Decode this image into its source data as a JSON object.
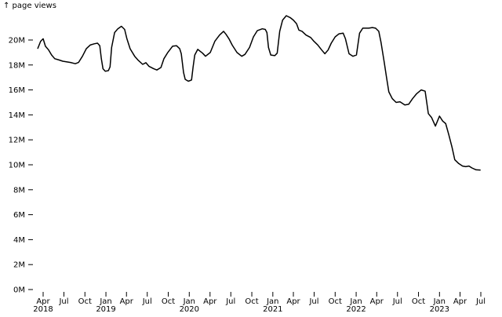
{
  "chart_data": {
    "type": "line",
    "ylabel": "↑ page views",
    "xlabel": "",
    "ylim": [
      0,
      22000000
    ],
    "xlim": [
      "2018-03-08",
      "2023-07-01"
    ],
    "grid": false,
    "stroke_color": "#000000",
    "y_ticks": [
      {
        "value": 0,
        "label": "0M"
      },
      {
        "value": 2000000,
        "label": "2M"
      },
      {
        "value": 4000000,
        "label": "4M"
      },
      {
        "value": 6000000,
        "label": "6M"
      },
      {
        "value": 8000000,
        "label": "8M"
      },
      {
        "value": 10000000,
        "label": "10M"
      },
      {
        "value": 12000000,
        "label": "12M"
      },
      {
        "value": 14000000,
        "label": "14M"
      },
      {
        "value": 16000000,
        "label": "16M"
      },
      {
        "value": 18000000,
        "label": "18M"
      },
      {
        "value": 20000000,
        "label": "20M"
      }
    ],
    "x_ticks": [
      {
        "date": "2018-04-01",
        "label": "Apr",
        "year": "2018"
      },
      {
        "date": "2018-07-01",
        "label": "Jul",
        "year": ""
      },
      {
        "date": "2018-10-01",
        "label": "Oct",
        "year": ""
      },
      {
        "date": "2019-01-01",
        "label": "Jan",
        "year": "2019"
      },
      {
        "date": "2019-04-01",
        "label": "Apr",
        "year": ""
      },
      {
        "date": "2019-07-01",
        "label": "Jul",
        "year": ""
      },
      {
        "date": "2019-10-01",
        "label": "Oct",
        "year": ""
      },
      {
        "date": "2020-01-01",
        "label": "Jan",
        "year": "2020"
      },
      {
        "date": "2020-04-01",
        "label": "Apr",
        "year": ""
      },
      {
        "date": "2020-07-01",
        "label": "Jul",
        "year": ""
      },
      {
        "date": "2020-10-01",
        "label": "Oct",
        "year": ""
      },
      {
        "date": "2021-01-01",
        "label": "Jan",
        "year": "2021"
      },
      {
        "date": "2021-04-01",
        "label": "Apr",
        "year": ""
      },
      {
        "date": "2021-07-01",
        "label": "Jul",
        "year": ""
      },
      {
        "date": "2021-10-01",
        "label": "Oct",
        "year": ""
      },
      {
        "date": "2022-01-01",
        "label": "Jan",
        "year": "2022"
      },
      {
        "date": "2022-04-01",
        "label": "Apr",
        "year": ""
      },
      {
        "date": "2022-07-01",
        "label": "Jul",
        "year": ""
      },
      {
        "date": "2022-10-01",
        "label": "Oct",
        "year": ""
      },
      {
        "date": "2023-01-01",
        "label": "Jan",
        "year": "2023"
      },
      {
        "date": "2023-04-01",
        "label": "Apr",
        "year": ""
      },
      {
        "date": "2023-07-01",
        "label": "Jul",
        "year": ""
      }
    ],
    "series": [
      {
        "points": [
          [
            "2018-03-08",
            19300000
          ],
          [
            "2018-03-21",
            19900000
          ],
          [
            "2018-04-01",
            20100000
          ],
          [
            "2018-04-11",
            19500000
          ],
          [
            "2018-04-25",
            19200000
          ],
          [
            "2018-05-08",
            18800000
          ],
          [
            "2018-05-22",
            18500000
          ],
          [
            "2018-06-09",
            18400000
          ],
          [
            "2018-06-26",
            18300000
          ],
          [
            "2018-07-30",
            18200000
          ],
          [
            "2018-08-20",
            18100000
          ],
          [
            "2018-09-03",
            18200000
          ],
          [
            "2018-09-20",
            18700000
          ],
          [
            "2018-10-07",
            19300000
          ],
          [
            "2018-10-24",
            19600000
          ],
          [
            "2018-11-11",
            19700000
          ],
          [
            "2018-11-25",
            19750000
          ],
          [
            "2018-12-05",
            19550000
          ],
          [
            "2018-12-12",
            18500000
          ],
          [
            "2018-12-19",
            17700000
          ],
          [
            "2018-12-29",
            17500000
          ],
          [
            "2019-01-12",
            17550000
          ],
          [
            "2019-01-19",
            17850000
          ],
          [
            "2019-01-26",
            19400000
          ],
          [
            "2019-02-08",
            20600000
          ],
          [
            "2019-02-22",
            20900000
          ],
          [
            "2019-03-10",
            21100000
          ],
          [
            "2019-03-24",
            20850000
          ],
          [
            "2019-04-03",
            20100000
          ],
          [
            "2019-04-17",
            19300000
          ],
          [
            "2019-05-07",
            18700000
          ],
          [
            "2019-05-21",
            18400000
          ],
          [
            "2019-06-11",
            18050000
          ],
          [
            "2019-06-25",
            18180000
          ],
          [
            "2019-07-08",
            17900000
          ],
          [
            "2019-07-29",
            17700000
          ],
          [
            "2019-08-12",
            17600000
          ],
          [
            "2019-08-30",
            17800000
          ],
          [
            "2019-09-12",
            18500000
          ],
          [
            "2019-09-29",
            19000000
          ],
          [
            "2019-10-20",
            19500000
          ],
          [
            "2019-11-06",
            19550000
          ],
          [
            "2019-11-20",
            19300000
          ],
          [
            "2019-11-27",
            18900000
          ],
          [
            "2019-12-07",
            17400000
          ],
          [
            "2019-12-14",
            16850000
          ],
          [
            "2019-12-28",
            16700000
          ],
          [
            "2020-01-11",
            16800000
          ],
          [
            "2020-01-18",
            17850000
          ],
          [
            "2020-01-25",
            18800000
          ],
          [
            "2020-02-07",
            19250000
          ],
          [
            "2020-02-28",
            18950000
          ],
          [
            "2020-03-12",
            18700000
          ],
          [
            "2020-04-02",
            19000000
          ],
          [
            "2020-04-22",
            19900000
          ],
          [
            "2020-05-13",
            20400000
          ],
          [
            "2020-05-30",
            20700000
          ],
          [
            "2020-06-10",
            20450000
          ],
          [
            "2020-06-23",
            20100000
          ],
          [
            "2020-07-07",
            19600000
          ],
          [
            "2020-07-28",
            19000000
          ],
          [
            "2020-08-18",
            18700000
          ],
          [
            "2020-09-01",
            18850000
          ],
          [
            "2020-09-21",
            19400000
          ],
          [
            "2020-10-08",
            20250000
          ],
          [
            "2020-10-25",
            20750000
          ],
          [
            "2020-11-16",
            20900000
          ],
          [
            "2020-11-29",
            20850000
          ],
          [
            "2020-12-06",
            20600000
          ],
          [
            "2020-12-13",
            19400000
          ],
          [
            "2020-12-23",
            18800000
          ],
          [
            "2021-01-10",
            18750000
          ],
          [
            "2021-01-20",
            18950000
          ],
          [
            "2021-01-31",
            20700000
          ],
          [
            "2021-02-13",
            21600000
          ],
          [
            "2021-03-01",
            21950000
          ],
          [
            "2021-03-18",
            21800000
          ],
          [
            "2021-04-01",
            21600000
          ],
          [
            "2021-04-15",
            21300000
          ],
          [
            "2021-04-25",
            20800000
          ],
          [
            "2021-05-09",
            20700000
          ],
          [
            "2021-05-26",
            20400000
          ],
          [
            "2021-06-16",
            20200000
          ],
          [
            "2021-06-30",
            19900000
          ],
          [
            "2021-07-17",
            19600000
          ],
          [
            "2021-08-03",
            19200000
          ],
          [
            "2021-08-17",
            18900000
          ],
          [
            "2021-08-31",
            19200000
          ],
          [
            "2021-09-14",
            19750000
          ],
          [
            "2021-10-01",
            20250000
          ],
          [
            "2021-10-18",
            20500000
          ],
          [
            "2021-11-05",
            20550000
          ],
          [
            "2021-11-15",
            20100000
          ],
          [
            "2021-12-01",
            18900000
          ],
          [
            "2021-12-18",
            18700000
          ],
          [
            "2022-01-02",
            18800000
          ],
          [
            "2022-01-16",
            20550000
          ],
          [
            "2022-01-30",
            20950000
          ],
          [
            "2022-02-25",
            20950000
          ],
          [
            "2022-03-13",
            21000000
          ],
          [
            "2022-03-27",
            20950000
          ],
          [
            "2022-04-10",
            20700000
          ],
          [
            "2022-04-20",
            19800000
          ],
          [
            "2022-05-04",
            18200000
          ],
          [
            "2022-05-14",
            17000000
          ],
          [
            "2022-05-24",
            15850000
          ],
          [
            "2022-06-08",
            15300000
          ],
          [
            "2022-06-25",
            15000000
          ],
          [
            "2022-07-12",
            15050000
          ],
          [
            "2022-08-02",
            14800000
          ],
          [
            "2022-08-19",
            14850000
          ],
          [
            "2022-09-05",
            15300000
          ],
          [
            "2022-09-23",
            15700000
          ],
          [
            "2022-10-13",
            16000000
          ],
          [
            "2022-10-30",
            15900000
          ],
          [
            "2022-11-13",
            14100000
          ],
          [
            "2022-11-27",
            13800000
          ],
          [
            "2022-12-14",
            13100000
          ],
          [
            "2023-01-01",
            13900000
          ],
          [
            "2023-01-15",
            13500000
          ],
          [
            "2023-01-28",
            13300000
          ],
          [
            "2023-02-11",
            12400000
          ],
          [
            "2023-02-25",
            11400000
          ],
          [
            "2023-03-09",
            10400000
          ],
          [
            "2023-03-26",
            10100000
          ],
          [
            "2023-04-12",
            9900000
          ],
          [
            "2023-04-26",
            9850000
          ],
          [
            "2023-05-10",
            9900000
          ],
          [
            "2023-05-23",
            9750000
          ],
          [
            "2023-06-10",
            9600000
          ],
          [
            "2023-06-30",
            9580000
          ]
        ]
      }
    ]
  }
}
